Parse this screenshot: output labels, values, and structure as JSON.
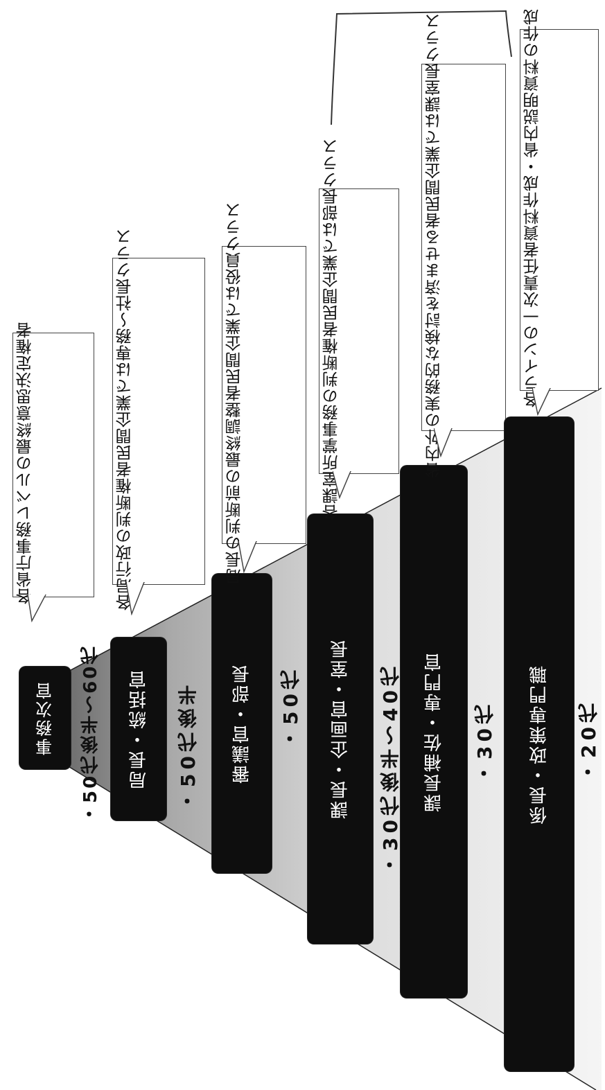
{
  "levels": [
    {
      "title": "事務次官",
      "age": "・50代後半～60代",
      "note": [
        "各省庁事務レベルの",
        "最終意思決定権者"
      ]
    },
    {
      "title": "局長・統括官",
      "age": "・50代後半",
      "note": [
        "各局行政の判断権者",
        "民間企業では専務～社長クラス"
      ]
    },
    {
      "title": "審議官・部長",
      "age": "・50代",
      "note": [
        "局長の判断前の最終調整者",
        "民間企業では役員クラス"
      ]
    },
    {
      "title": "課長・企画官・室長",
      "age": "・30代後半～40代",
      "note": [
        "各課室所掌事務の判断権者",
        "民間企業では部長クラス"
      ]
    },
    {
      "title": "課長補佐・専門官",
      "age": "・30代",
      "note": [
        "省内外の実務的な検討を済ませる者",
        "民間企業では課室長クラス"
      ]
    },
    {
      "title": "係長・政策専門職",
      "age": "・20代",
      "note": [
        "各ラインの一次責任者",
        "資料作成・省内説明資料の作成"
      ]
    }
  ],
  "colors": {
    "bar": "#0e0e0e",
    "pyramid": "#c9c9c9"
  }
}
